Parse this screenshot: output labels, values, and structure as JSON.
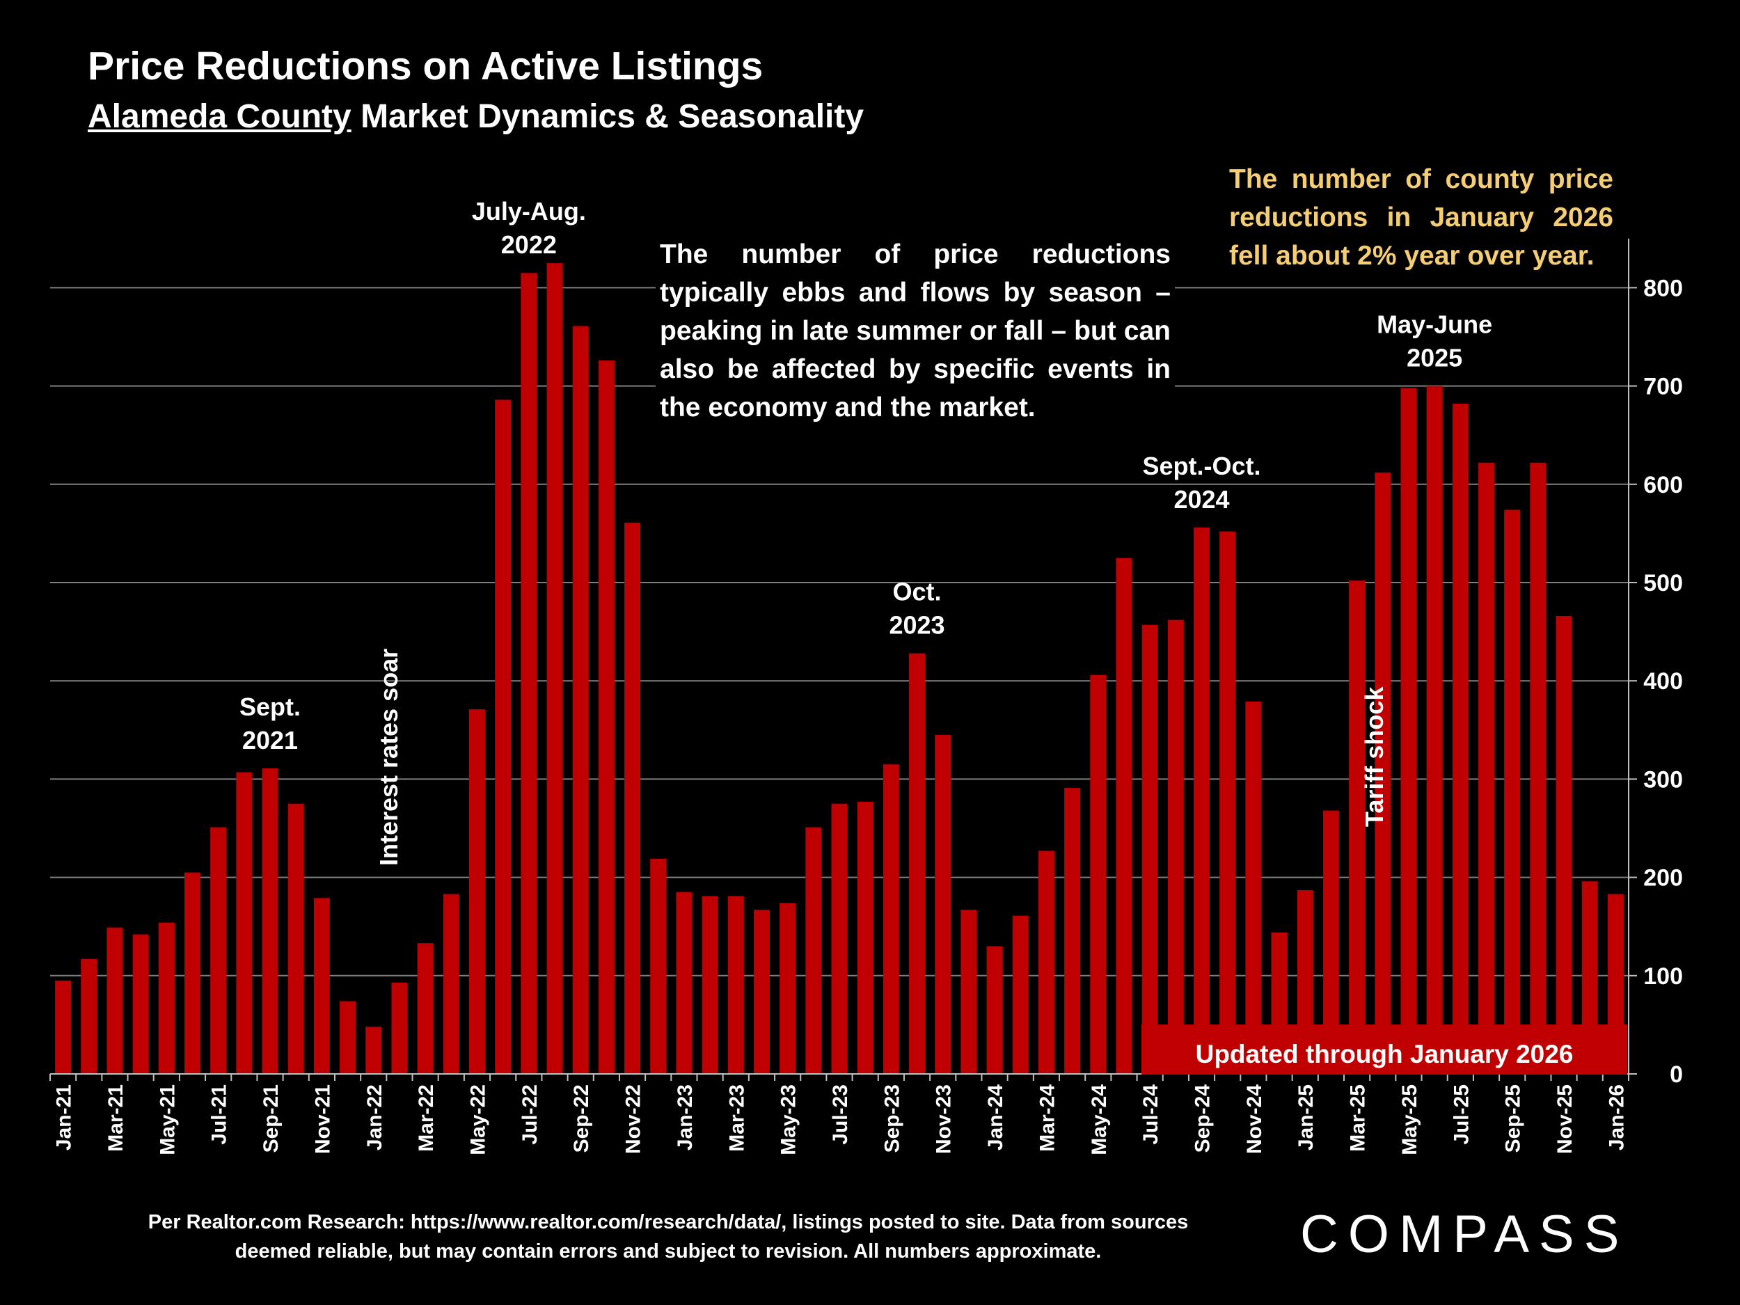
{
  "title": "Price Reductions on Active Listings",
  "subtitle_underlined": "Alameda County",
  "subtitle_rest": " Market Dynamics & Seasonality",
  "note_text": "The number of price reductions typically ebbs and flows by season – peaking in late summer or fall – but can also be affected by specific events in the economy and the market.",
  "yoy_text": "The number of county price reductions in January 2026 fell about 2% year over year.",
  "updated_text": "Updated through January 2026",
  "source_text": "Per Realtor.com Research:  https://www.realtor.com/research/data/, listings posted to site. Data from sources deemed reliable, but may contain errors and subject to revision. All numbers approximate.",
  "logo_text": "COMPASS",
  "colors": {
    "bar": "#C00000",
    "background": "#000000",
    "text": "#FFFFFF",
    "callout": "#F5CE74",
    "grid": "#7F7F7F"
  },
  "chart_data": {
    "type": "bar",
    "categories": [
      "Jan-21",
      "Feb-21",
      "Mar-21",
      "Apr-21",
      "May-21",
      "Jun-21",
      "Jul-21",
      "Aug-21",
      "Sep-21",
      "Oct-21",
      "Nov-21",
      "Dec-21",
      "Jan-22",
      "Feb-22",
      "Mar-22",
      "Apr-22",
      "May-22",
      "Jun-22",
      "Jul-22",
      "Aug-22",
      "Sep-22",
      "Oct-22",
      "Nov-22",
      "Dec-22",
      "Jan-23",
      "Feb-23",
      "Mar-23",
      "Apr-23",
      "May-23",
      "Jun-23",
      "Jul-23",
      "Aug-23",
      "Sep-23",
      "Oct-23",
      "Nov-23",
      "Dec-23",
      "Jan-24",
      "Feb-24",
      "Mar-24",
      "Apr-24",
      "May-24",
      "Jun-24",
      "Jul-24",
      "Aug-24",
      "Sep-24",
      "Oct-24",
      "Nov-24",
      "Dec-24",
      "Jan-25",
      "Feb-25",
      "Mar-25",
      "Apr-25",
      "May-25",
      "Jun-25",
      "Jul-25",
      "Aug-25",
      "Sep-25",
      "Oct-25",
      "Nov-25",
      "Dec-25",
      "Jan-26"
    ],
    "x_tick_labels": [
      "Jan-21",
      "Mar-21",
      "May-21",
      "Jul-21",
      "Sep-21",
      "Nov-21",
      "Jan-22",
      "Mar-22",
      "May-22",
      "Jul-22",
      "Sep-22",
      "Nov-22",
      "Jan-23",
      "Mar-23",
      "May-23",
      "Jul-23",
      "Sep-23",
      "Nov-23",
      "Jan-24",
      "Mar-24",
      "May-24",
      "Jul-24",
      "Sep-24",
      "Nov-24",
      "Jan-25",
      "Mar-25",
      "May-25",
      "Jul-25",
      "Sep-25",
      "Nov-25",
      "Jan-26"
    ],
    "values": [
      95,
      117,
      149,
      142,
      154,
      205,
      251,
      307,
      311,
      275,
      179,
      74,
      48,
      93,
      133,
      183,
      371,
      686,
      815,
      825,
      761,
      726,
      561,
      219,
      185,
      181,
      181,
      167,
      174,
      251,
      275,
      277,
      315,
      428,
      345,
      167,
      130,
      161,
      227,
      291,
      406,
      525,
      457,
      462,
      556,
      552,
      379,
      144,
      187,
      268,
      502,
      612,
      698,
      700,
      682,
      622,
      574,
      622,
      466,
      196,
      183
    ],
    "y_axis": {
      "position": "right",
      "ylim": [
        0,
        850
      ],
      "ticks": [
        0,
        100,
        200,
        300,
        400,
        500,
        600,
        700,
        800
      ]
    },
    "grid": true,
    "annotations": [
      {
        "text": [
          "Sept.",
          "2021"
        ],
        "category": "Sep-21"
      },
      {
        "text": [
          "July-Aug.",
          "2022"
        ],
        "category": "Jul-22"
      },
      {
        "text": [
          "Oct.",
          "2023"
        ],
        "category": "Oct-23"
      },
      {
        "text": [
          "Sept.-Oct.",
          "2024"
        ],
        "category": "Sep-24"
      },
      {
        "text": [
          "May-June",
          "2025"
        ],
        "category": "Jun-25"
      }
    ],
    "event_labels": [
      {
        "text": "Interest rates soar",
        "category": "Mar-22"
      },
      {
        "text": "Tariff shock",
        "category": "Apr-25"
      }
    ]
  }
}
